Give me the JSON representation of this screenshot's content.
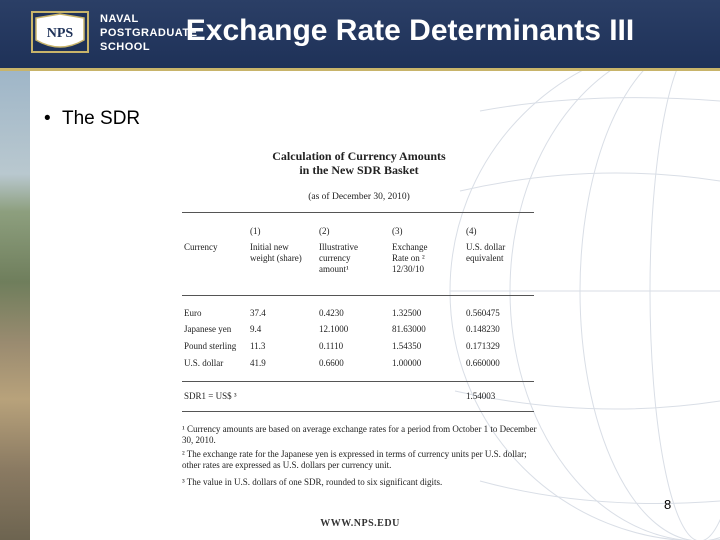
{
  "header": {
    "school_lines": [
      "NAVAL",
      "POSTGRADUATE",
      "SCHOOL"
    ],
    "logo_text": "NPS",
    "title": "Exchange Rate Determinants III"
  },
  "bullet": "The SDR",
  "table": {
    "title_lines": [
      "Calculation of Currency Amounts",
      "in the New SDR Basket"
    ],
    "date": "(as of December 30, 2010)",
    "col_nums": [
      "(1)",
      "(2)",
      "(3)",
      "(4)"
    ],
    "col_headers": [
      [
        "Currency"
      ],
      [
        "Initial new",
        "weight (share)"
      ],
      [
        "Illustrative",
        "currency",
        "amount¹"
      ],
      [
        "Exchange",
        "Rate on ²",
        "12/30/10"
      ],
      [
        "U.S. dollar",
        "equivalent"
      ]
    ],
    "rows": [
      [
        "Euro",
        "37.4",
        "0.4230",
        "1.32500",
        "0.560475"
      ],
      [
        "Japanese yen",
        "9.4",
        "12.1000",
        "81.63000",
        "0.148230"
      ],
      [
        "Pound sterling",
        "11.3",
        "0.1110",
        "1.54350",
        "0.171329"
      ],
      [
        "U.S. dollar",
        "41.9",
        "0.6600",
        "1.00000",
        "0.660000"
      ]
    ],
    "total_label": "SDR1 = US$ ³",
    "total_value": "1.54003",
    "notes": [
      "¹ Currency amounts are based on average exchange rates for a period from October 1 to December 30, 2010.",
      "² The exchange rate for the Japanese yen is expressed in terms of currency units per U.S. dollar; other rates are expressed as U.S. dollars per currency unit.",
      "³ The value in U.S. dollars of one SDR, rounded to six significant digits."
    ]
  },
  "page_number": "8",
  "footer": "WWW.NPS.EDU",
  "colors": {
    "header": "#1e3158",
    "accent": "#c8b46a"
  }
}
